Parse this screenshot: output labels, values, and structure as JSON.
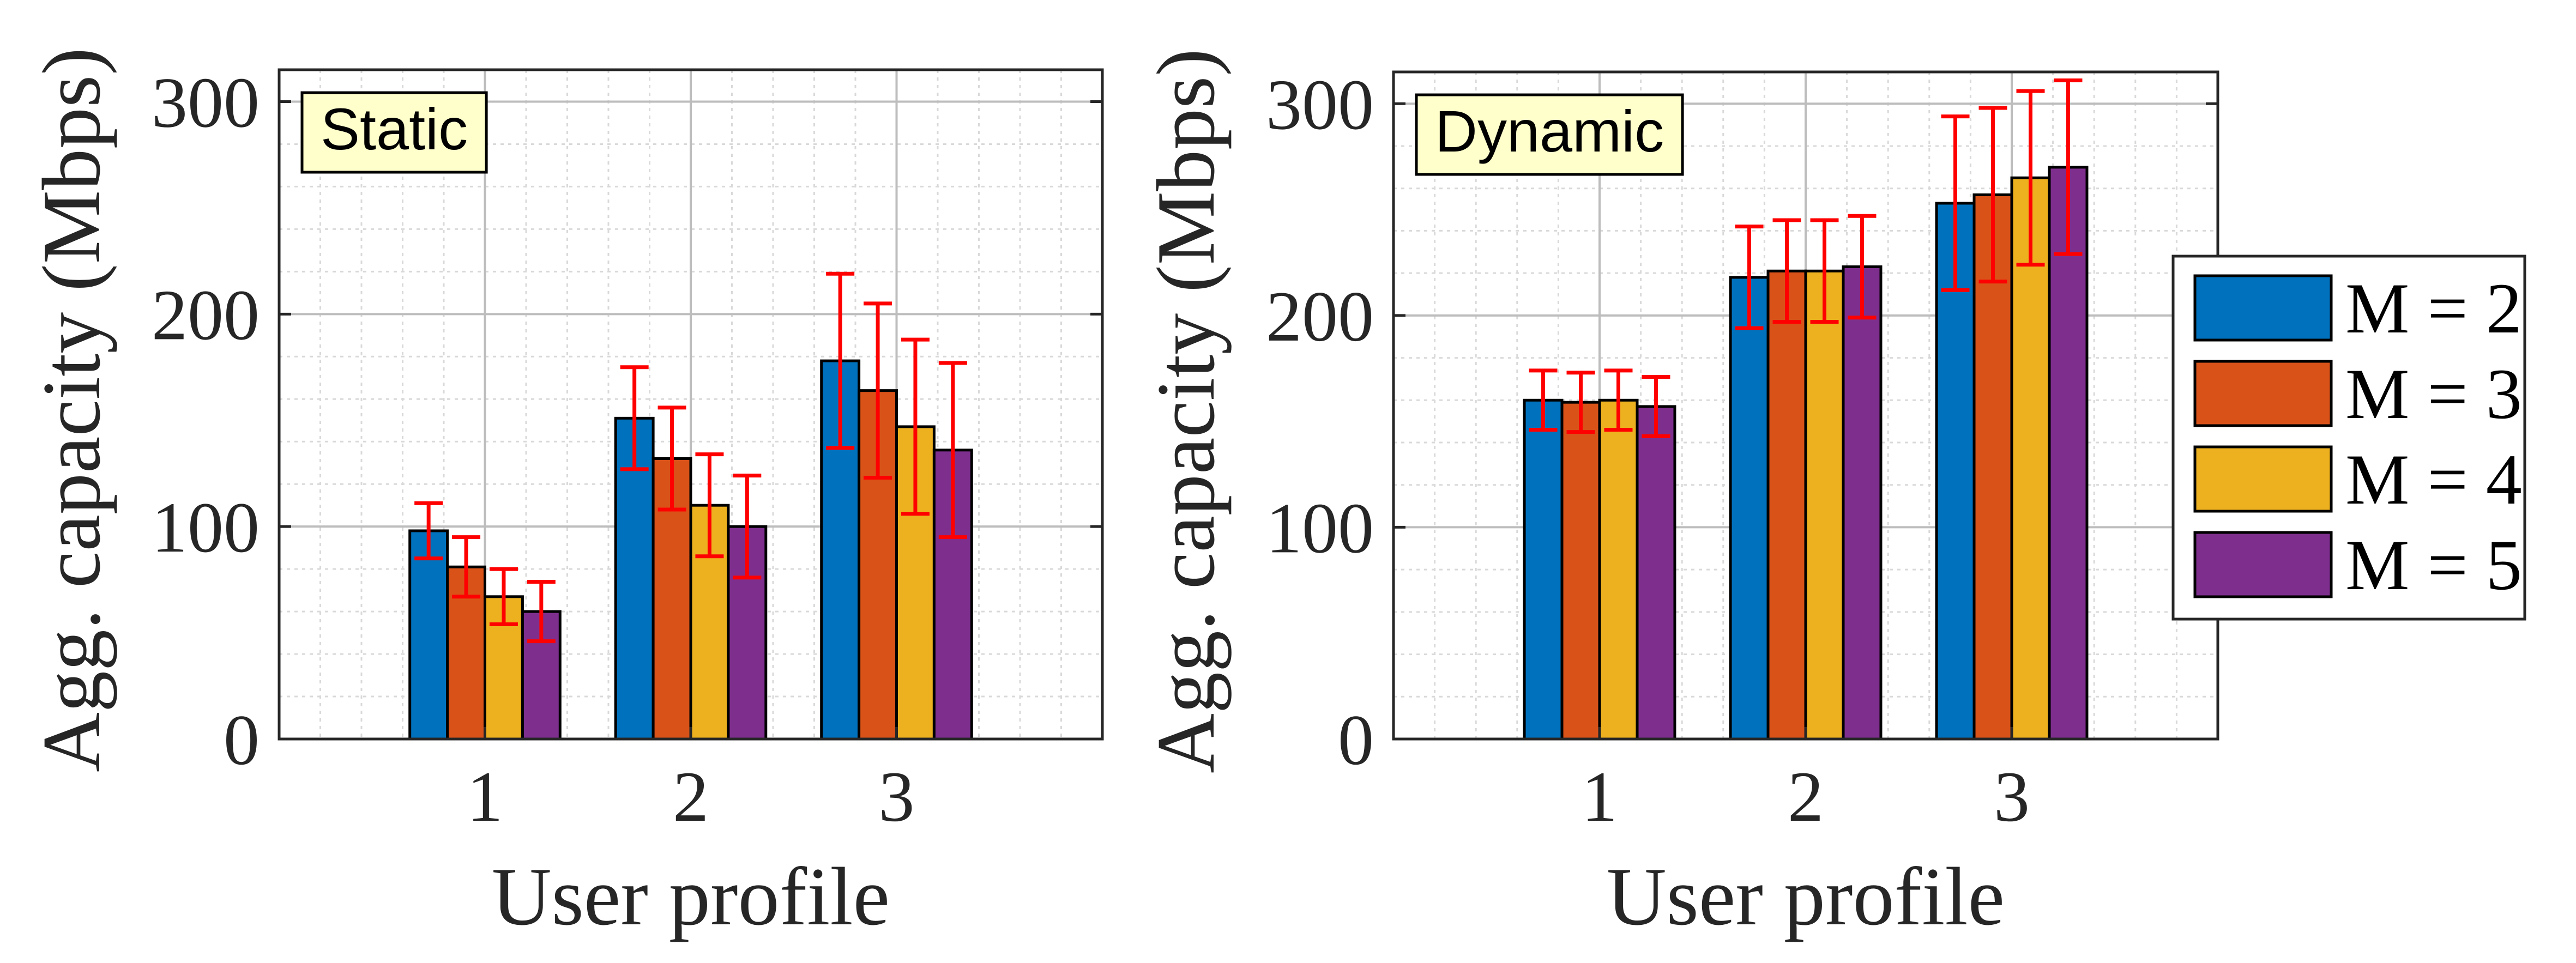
{
  "chart_data": [
    {
      "type": "bar",
      "annotation": "Static",
      "xlabel": "User profile",
      "ylabel": "Agg. capacity (Mbps)",
      "categories": [
        "1",
        "2",
        "3"
      ],
      "ylim": [
        0,
        315
      ],
      "yticks": [
        0,
        100,
        200,
        300
      ],
      "xlim": [
        0,
        4
      ],
      "grid": true,
      "series": [
        {
          "name": "M = 2",
          "values": [
            98,
            151,
            178
          ],
          "err": [
            13,
            24,
            41
          ]
        },
        {
          "name": "M = 3",
          "values": [
            81,
            132,
            164
          ],
          "err": [
            14,
            24,
            41
          ]
        },
        {
          "name": "M = 4",
          "values": [
            67,
            110,
            147
          ],
          "err": [
            13,
            24,
            41
          ]
        },
        {
          "name": "M = 5",
          "values": [
            60,
            100,
            136
          ],
          "err": [
            14,
            24,
            41
          ]
        }
      ]
    },
    {
      "type": "bar",
      "annotation": "Dynamic",
      "xlabel": "User profile",
      "ylabel": "Agg. capacity (Mbps)",
      "categories": [
        "1",
        "2",
        "3"
      ],
      "ylim": [
        0,
        315
      ],
      "yticks": [
        0,
        100,
        200,
        300
      ],
      "xlim": [
        0,
        4
      ],
      "grid": true,
      "legend_position": "outside-right",
      "series": [
        {
          "name": "M = 2",
          "values": [
            160,
            218,
            253
          ],
          "err": [
            14,
            24,
            41
          ]
        },
        {
          "name": "M = 3",
          "values": [
            159,
            221,
            257
          ],
          "err": [
            14,
            24,
            41
          ]
        },
        {
          "name": "M = 4",
          "values": [
            160,
            221,
            265
          ],
          "err": [
            14,
            24,
            41
          ]
        },
        {
          "name": "M = 5",
          "values": [
            157,
            223,
            270
          ],
          "err": [
            14,
            24,
            41
          ]
        }
      ]
    }
  ],
  "colors": {
    "series": [
      "#0072BD",
      "#D95319",
      "#EDB120",
      "#7E2F8E"
    ],
    "error_bar": "#FF0000",
    "annotation_bg": "#FFFFCC",
    "grid": "#BDBDBD"
  }
}
